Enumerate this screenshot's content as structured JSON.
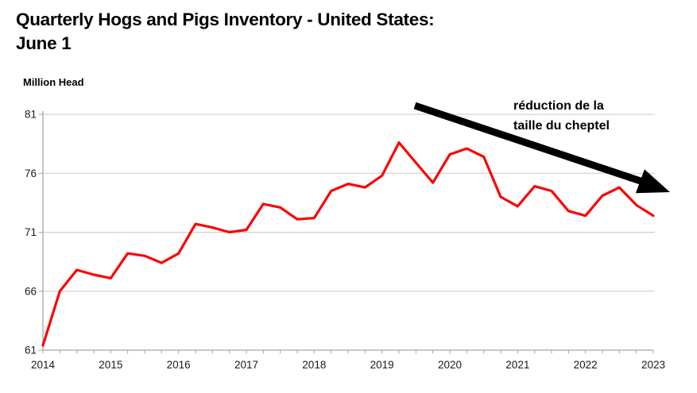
{
  "title": {
    "line1": "Quarterly Hogs and Pigs Inventory - United States:",
    "line2": "June 1"
  },
  "chart_data": {
    "type": "line",
    "title": "Quarterly Hogs and Pigs Inventory - United States: June 1",
    "ylabel": "Million Head",
    "xlabel": "",
    "ylim": [
      61,
      81
    ],
    "y_ticks": [
      61,
      66,
      71,
      76,
      81
    ],
    "x_tick_labels": [
      "2014",
      "2015",
      "2016",
      "2017",
      "2018",
      "2019",
      "2020",
      "2021",
      "2022",
      "2023"
    ],
    "points_per_year": 4,
    "grid": true,
    "legend": "none",
    "line_color": "#fb0404",
    "values": [
      61.4,
      66.0,
      67.8,
      67.4,
      67.1,
      69.2,
      69.0,
      68.4,
      69.2,
      71.7,
      71.4,
      71.0,
      71.2,
      73.4,
      73.1,
      72.1,
      72.2,
      74.5,
      75.1,
      74.8,
      75.8,
      78.6,
      76.9,
      75.2,
      77.6,
      78.1,
      77.4,
      74.0,
      73.2,
      74.9,
      74.5,
      72.8,
      72.4,
      74.1,
      74.8,
      73.3,
      72.4
    ],
    "annotation": {
      "line1": "réduction de la",
      "line2": "taille du cheptel",
      "color": "#000000",
      "arrow": "diagonal-down-right"
    }
  }
}
